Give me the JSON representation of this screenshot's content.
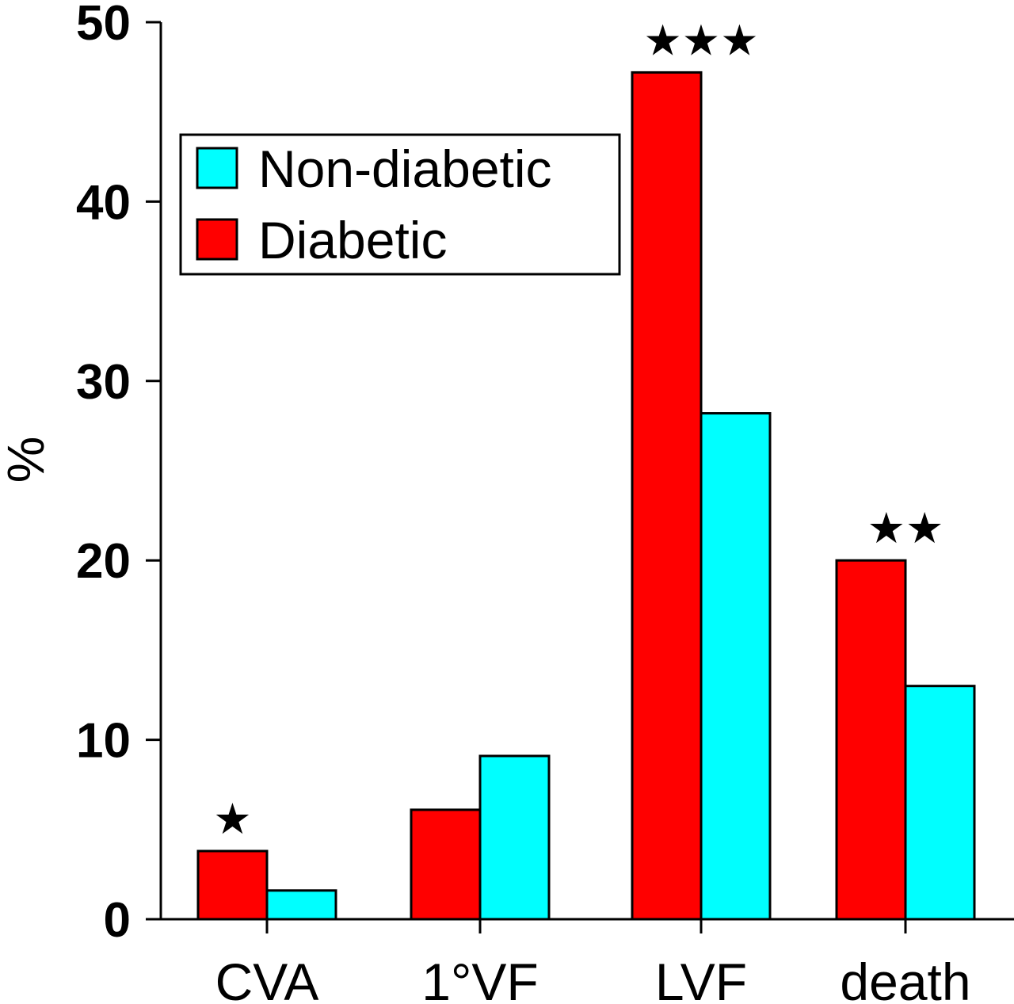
{
  "chart_data": {
    "type": "bar",
    "title": "",
    "xlabel": "",
    "ylabel": "%",
    "ylim": [
      0,
      50
    ],
    "yticks": [
      0,
      10,
      20,
      30,
      40,
      50
    ],
    "grid": false,
    "legend_position": "top-left",
    "categories": [
      "CVA",
      "1°VF",
      "LVF",
      "death"
    ],
    "series": [
      {
        "name": "Diabetic",
        "color": "#ff0000",
        "values": [
          3.8,
          6.1,
          47.2,
          20.0
        ]
      },
      {
        "name": "Non-diabetic",
        "color": "#00ffff",
        "values": [
          1.6,
          9.1,
          28.2,
          13.0
        ]
      }
    ],
    "legend": [
      "Non-diabetic",
      "Diabetic"
    ],
    "annotations": [
      "★",
      "",
      "★★★",
      "★★"
    ]
  }
}
